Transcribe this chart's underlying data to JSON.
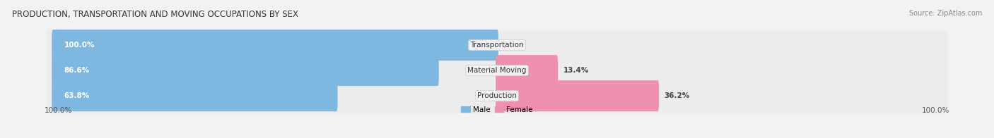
{
  "title": "PRODUCTION, TRANSPORTATION AND MOVING OCCUPATIONS BY SEX",
  "source": "Source: ZipAtlas.com",
  "categories": [
    "Transportation",
    "Material Moving",
    "Production"
  ],
  "male_values": [
    100.0,
    86.6,
    63.8
  ],
  "female_values": [
    0.0,
    13.4,
    36.2
  ],
  "male_color": "#7eb8e0",
  "female_color": "#f090b0",
  "bg_color": "#f2f2f2",
  "bar_bg_color": "#e0e0e0",
  "bar_row_bg": "#ececec",
  "title_fontsize": 8.5,
  "bar_label_fontsize": 7.5,
  "category_fontsize": 7.5,
  "axis_label_fontsize": 7.5,
  "legend_fontsize": 7.5,
  "source_fontsize": 7.0,
  "total_width": 100,
  "left_axis_label": "100.0%",
  "right_axis_label": "100.0%"
}
